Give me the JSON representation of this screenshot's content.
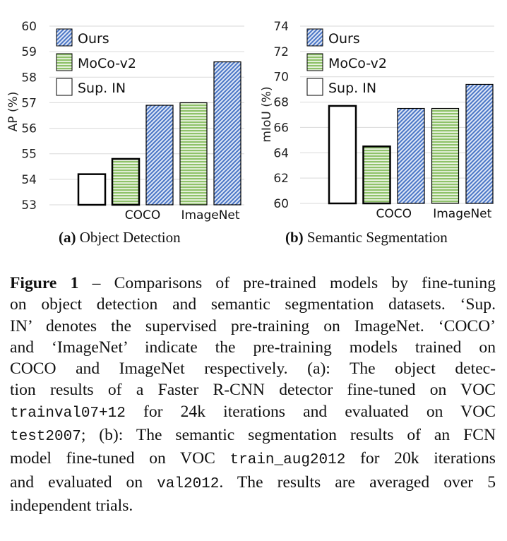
{
  "chart_data": [
    {
      "type": "bar",
      "id": "a",
      "title": "Object Detection",
      "subcaption_label": "(a)",
      "xlabel": "",
      "ylabel": "AP (%)",
      "ylim": [
        53,
        60
      ],
      "yticks": [
        53,
        54,
        55,
        56,
        57,
        58,
        59,
        60
      ],
      "grid": true,
      "legend": {
        "placement": "top-left",
        "entries": [
          "Ours",
          "MoCo-v2",
          "Sup. IN"
        ]
      },
      "bars": [
        {
          "series": "Sup. IN",
          "group": "",
          "value": 54.2
        },
        {
          "series": "MoCo-v2",
          "group": "COCO",
          "value": 54.8
        },
        {
          "series": "Ours",
          "group": "COCO",
          "value": 56.9
        },
        {
          "series": "MoCo-v2",
          "group": "ImageNet",
          "value": 57.0
        },
        {
          "series": "Ours",
          "group": "ImageNet",
          "value": 58.6
        }
      ],
      "category_labels": [
        {
          "label": "COCO",
          "between": [
            1,
            2
          ]
        },
        {
          "label": "ImageNet",
          "between": [
            3,
            4
          ]
        }
      ]
    },
    {
      "type": "bar",
      "id": "b",
      "title": "Semantic Segmentation",
      "subcaption_label": "(b)",
      "xlabel": "",
      "ylabel": "mIoU (%)",
      "ylim": [
        60,
        74
      ],
      "yticks": [
        60,
        62,
        64,
        66,
        68,
        70,
        72,
        74
      ],
      "grid": true,
      "legend": {
        "placement": "top-left",
        "entries": [
          "Ours",
          "MoCo-v2",
          "Sup. IN"
        ]
      },
      "bars": [
        {
          "series": "Sup. IN",
          "group": "",
          "value": 67.7
        },
        {
          "series": "MoCo-v2",
          "group": "COCO",
          "value": 64.5
        },
        {
          "series": "Ours",
          "group": "COCO",
          "value": 67.5
        },
        {
          "series": "MoCo-v2",
          "group": "ImageNet",
          "value": 67.5
        },
        {
          "series": "Ours",
          "group": "ImageNet",
          "value": 69.4
        }
      ],
      "category_labels": [
        {
          "label": "COCO",
          "between": [
            1,
            2
          ]
        },
        {
          "label": "ImageNet",
          "between": [
            3,
            4
          ]
        }
      ]
    }
  ],
  "series_styles": {
    "Ours": {
      "pattern": "diagonal-hatch",
      "color": "#4472c4"
    },
    "MoCo-v2": {
      "pattern": "horizontal-lines",
      "color": "#70ad47"
    },
    "Sup. IN": {
      "pattern": "none",
      "color": "#ffffff"
    }
  },
  "subcaptions": {
    "a": {
      "label": "(a)",
      "text": " Object Detection"
    },
    "b": {
      "label": "(b)",
      "text": " Semantic Segmentation"
    }
  },
  "caption": {
    "label": "Figure 1",
    "lines": [
      [
        {
          "t": "– Comparisons of pre-trained models by fine-tuning"
        }
      ],
      [
        {
          "t": "on object detection and semantic segmentation datasets. ‘Sup."
        }
      ],
      [
        {
          "t": "IN’ denotes the supervised pre-training on ImageNet. ‘COCO’"
        }
      ],
      [
        {
          "t": "and ‘ImageNet’ indicate the pre-training models trained on"
        }
      ],
      [
        {
          "t": "COCO and ImageNet respectively.  (a):  The object detec-"
        }
      ],
      [
        {
          "t": "tion results of a Faster R-CNN detector fine-tuned on VOC"
        }
      ],
      [
        {
          "t": "trainval07+12",
          "code": true
        },
        {
          "t": " for 24k iterations and evaluated on VOC"
        }
      ],
      [
        {
          "t": "test2007",
          "code": true
        },
        {
          "t": "; (b): The semantic segmentation results of an FCN"
        }
      ],
      [
        {
          "t": "model fine-tuned on VOC "
        },
        {
          "t": "train_aug2012",
          "code": true
        },
        {
          "t": " for 20k iterations"
        }
      ],
      [
        {
          "t": "and evaluated on "
        },
        {
          "t": "val2012",
          "code": true
        },
        {
          "t": ".  The results are averaged over 5"
        }
      ],
      [
        {
          "t": "independent trials."
        }
      ]
    ]
  }
}
